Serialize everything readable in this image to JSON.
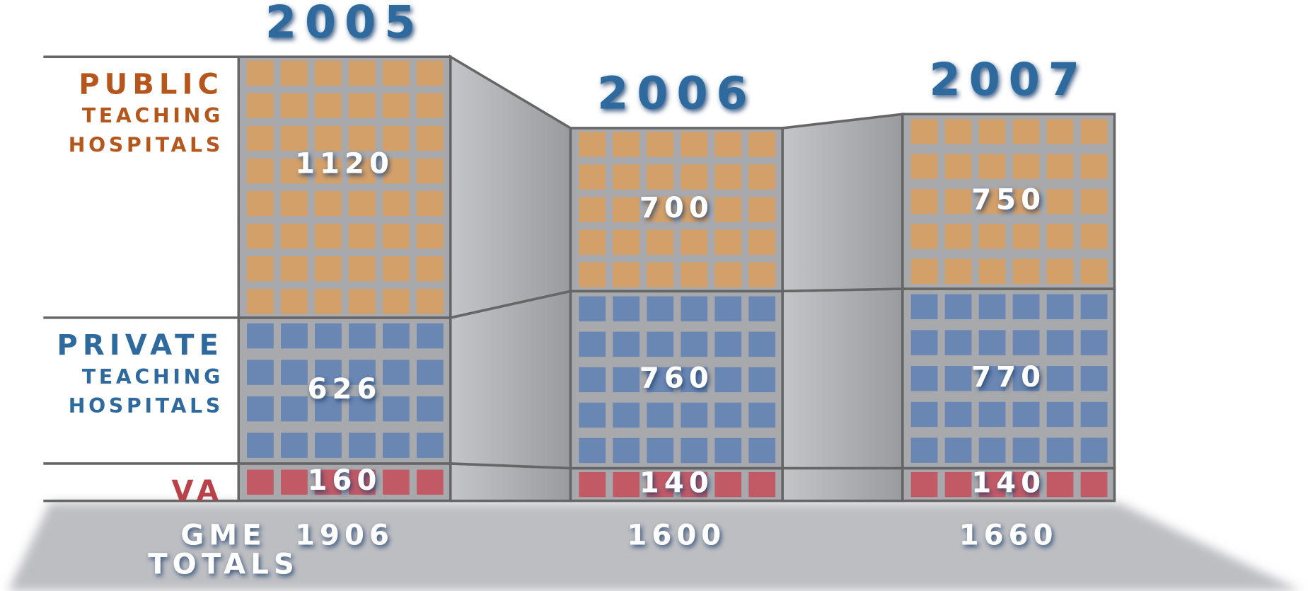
{
  "chart_data": {
    "type": "stacked-building",
    "categories": [
      "2005",
      "2006",
      "2007"
    ],
    "series": [
      {
        "label_lines": [
          "VA"
        ],
        "color": "#c25a66",
        "label_color": "#b8414a",
        "values": [
          160,
          140,
          140
        ]
      },
      {
        "label_lines": [
          "PRIVATE",
          "TEACHING",
          "HOSPITALS"
        ],
        "color": "#6a86b2",
        "label_color": "#2e6a9e",
        "values": [
          626,
          760,
          770
        ]
      },
      {
        "label_lines": [
          "PUBLIC",
          "TEACHING",
          "HOSPITALS"
        ],
        "color": "#d4a06a",
        "label_color": "#b5561c",
        "values": [
          1120,
          700,
          750
        ]
      }
    ],
    "totals_label_lines": [
      "GME",
      "TOTALS"
    ],
    "totals": [
      1906,
      1600,
      1660
    ]
  }
}
